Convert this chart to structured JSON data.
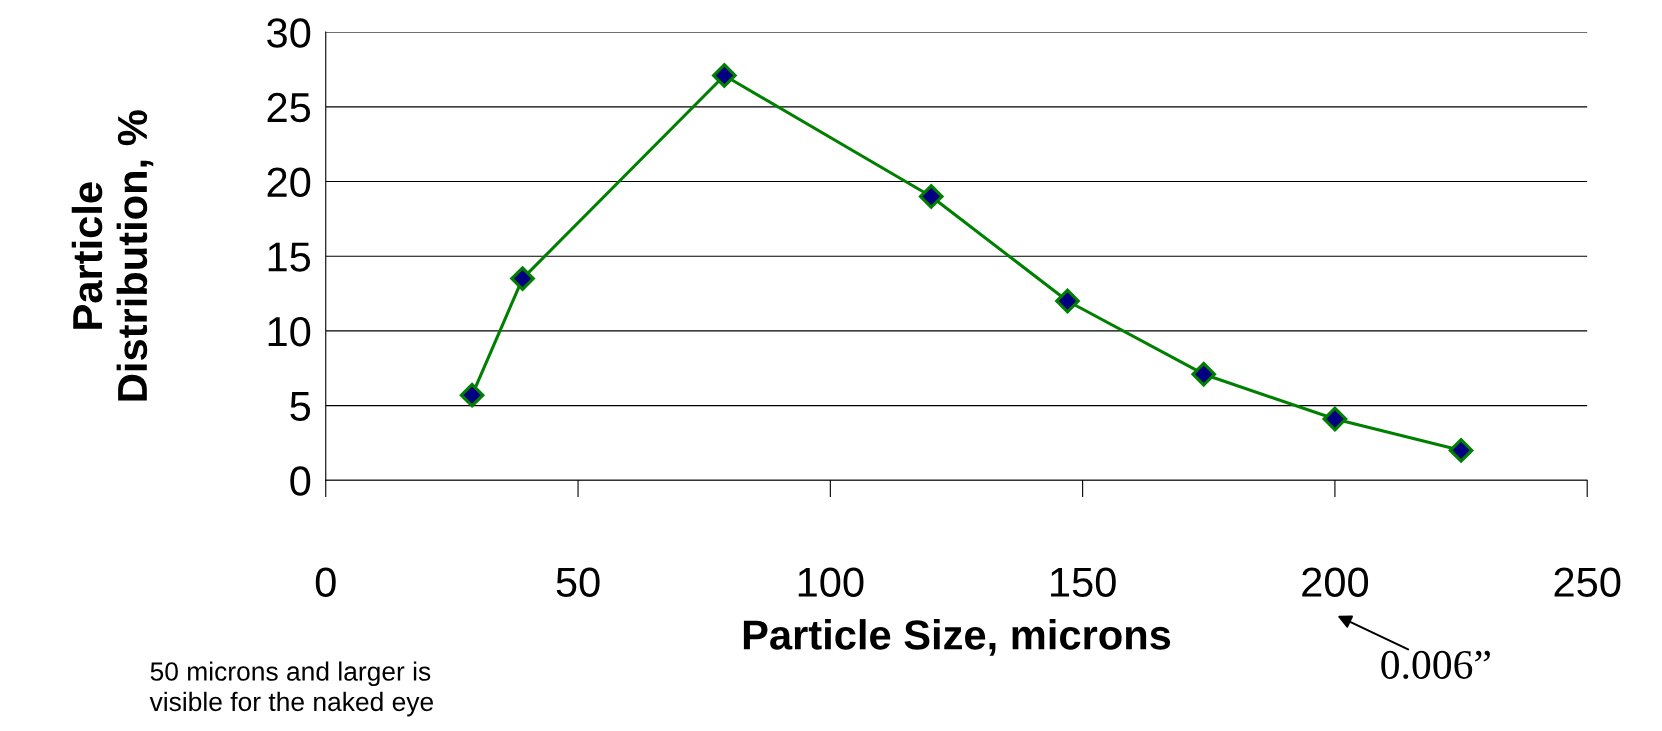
{
  "chart_data": {
    "type": "line",
    "xlabel": "Particle Size, microns",
    "ylabel": "Particle\nDistribution, %",
    "x": [
      29,
      39,
      79,
      120,
      147,
      174,
      200,
      225
    ],
    "series": [
      {
        "color": "#008000",
        "colors": [
          "#000080",
          "#000080",
          "#000080",
          "#000080",
          "#000080",
          "#000080",
          "#000080",
          "#000080"
        ],
        "values": [
          5.7,
          13.5,
          27.1,
          19,
          12,
          7.1,
          4.1,
          2
        ]
      }
    ],
    "xlim": [
      0,
      250
    ],
    "xticks": [
      0,
      50,
      100,
      150,
      200,
      250
    ],
    "ylim": [
      0,
      30
    ],
    "yticks": [
      0,
      5,
      10,
      15,
      20,
      25,
      30
    ],
    "grid": "y",
    "marker": "diamond",
    "line_style": "solid",
    "annotations": [
      "50 microns and larger is\nvisible for the naked eye",
      "0.006”"
    ]
  }
}
